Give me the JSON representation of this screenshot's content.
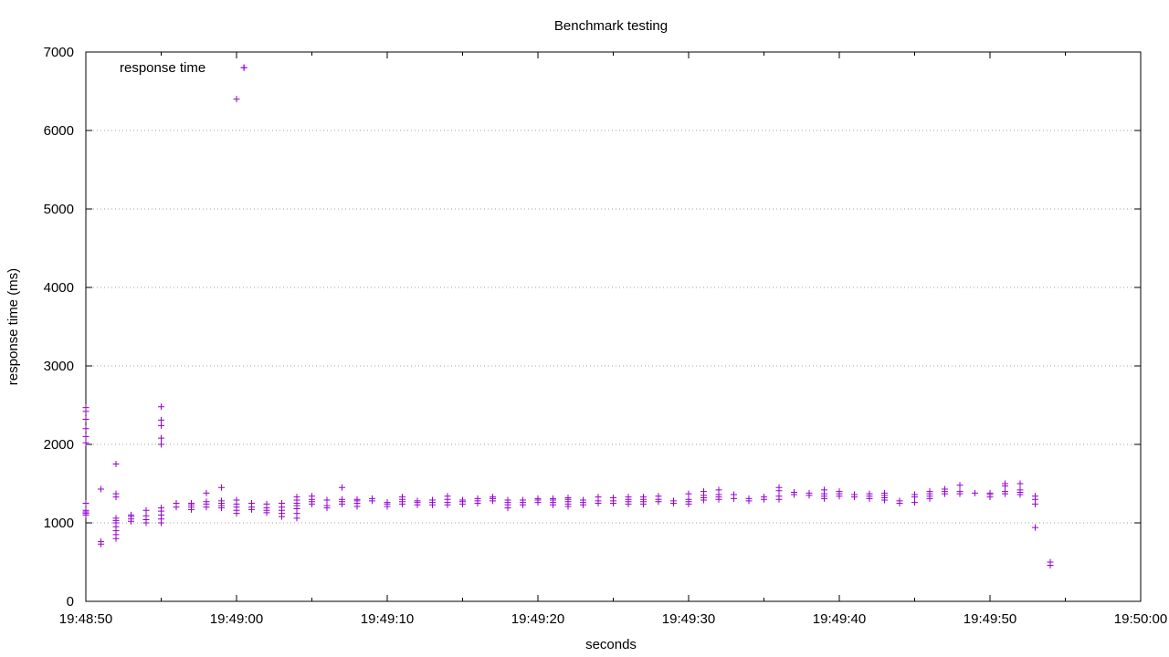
{
  "chart_data": {
    "type": "scatter",
    "title": "Benchmark testing",
    "xlabel": "seconds",
    "ylabel": "response time (ms)",
    "xlim": [
      "19:48:50",
      "19:50:00"
    ],
    "ylim": [
      0,
      7000
    ],
    "x_tick_labels": [
      "19:48:50",
      "19:49:00",
      "19:49:10",
      "19:49:20",
      "19:49:30",
      "19:49:40",
      "19:49:50",
      "19:50:00"
    ],
    "y_tick_labels": [
      "0",
      "1000",
      "2000",
      "3000",
      "4000",
      "5000",
      "6000",
      "7000"
    ],
    "y_grid": true,
    "legend": {
      "position": "top-left",
      "entries": [
        "response time"
      ]
    },
    "series": [
      {
        "name": "response time",
        "color": "#9400d3",
        "marker": "plus",
        "points": [
          [
            "19:48:50",
            1100
          ],
          [
            "19:48:50",
            1120
          ],
          [
            "19:48:50",
            1140
          ],
          [
            "19:48:50",
            1160
          ],
          [
            "19:48:50",
            1250
          ],
          [
            "19:48:50",
            2020
          ],
          [
            "19:48:50",
            2100
          ],
          [
            "19:48:50",
            2200
          ],
          [
            "19:48:50",
            2320
          ],
          [
            "19:48:50",
            2420
          ],
          [
            "19:48:50",
            2470
          ],
          [
            "19:48:51",
            730
          ],
          [
            "19:48:51",
            760
          ],
          [
            "19:48:51",
            1430
          ],
          [
            "19:48:52",
            800
          ],
          [
            "19:48:52",
            850
          ],
          [
            "19:48:52",
            900
          ],
          [
            "19:48:52",
            950
          ],
          [
            "19:48:52",
            1000
          ],
          [
            "19:48:52",
            1030
          ],
          [
            "19:48:52",
            1060
          ],
          [
            "19:48:52",
            1330
          ],
          [
            "19:48:52",
            1370
          ],
          [
            "19:48:52",
            1750
          ],
          [
            "19:48:53",
            1020
          ],
          [
            "19:48:53",
            1050
          ],
          [
            "19:48:53",
            1080
          ],
          [
            "19:48:53",
            1100
          ],
          [
            "19:48:54",
            1000
          ],
          [
            "19:48:54",
            1040
          ],
          [
            "19:48:54",
            1090
          ],
          [
            "19:48:54",
            1160
          ],
          [
            "19:48:55",
            1000
          ],
          [
            "19:48:55",
            1050
          ],
          [
            "19:48:55",
            1100
          ],
          [
            "19:48:55",
            1150
          ],
          [
            "19:48:55",
            1190
          ],
          [
            "19:48:55",
            2000
          ],
          [
            "19:48:55",
            2080
          ],
          [
            "19:48:55",
            2240
          ],
          [
            "19:48:55",
            2310
          ],
          [
            "19:48:55",
            2480
          ],
          [
            "19:48:56",
            1200
          ],
          [
            "19:48:56",
            1250
          ],
          [
            "19:48:57",
            1170
          ],
          [
            "19:48:57",
            1200
          ],
          [
            "19:48:57",
            1230
          ],
          [
            "19:48:57",
            1250
          ],
          [
            "19:48:58",
            1200
          ],
          [
            "19:48:58",
            1240
          ],
          [
            "19:48:58",
            1270
          ],
          [
            "19:48:58",
            1380
          ],
          [
            "19:48:59",
            1190
          ],
          [
            "19:48:59",
            1220
          ],
          [
            "19:48:59",
            1250
          ],
          [
            "19:48:59",
            1280
          ],
          [
            "19:48:59",
            1450
          ],
          [
            "19:49:00",
            1120
          ],
          [
            "19:49:00",
            1160
          ],
          [
            "19:49:00",
            1200
          ],
          [
            "19:49:00",
            1240
          ],
          [
            "19:49:00",
            1290
          ],
          [
            "19:49:00",
            6400
          ],
          [
            "19:49:00.5",
            6800
          ],
          [
            "19:49:01",
            1170
          ],
          [
            "19:49:01",
            1200
          ],
          [
            "19:49:01",
            1250
          ],
          [
            "19:49:02",
            1130
          ],
          [
            "19:49:02",
            1160
          ],
          [
            "19:49:02",
            1190
          ],
          [
            "19:49:02",
            1240
          ],
          [
            "19:49:03",
            1080
          ],
          [
            "19:49:03",
            1120
          ],
          [
            "19:49:03",
            1160
          ],
          [
            "19:49:03",
            1200
          ],
          [
            "19:49:03",
            1250
          ],
          [
            "19:49:04",
            1060
          ],
          [
            "19:49:04",
            1120
          ],
          [
            "19:49:04",
            1180
          ],
          [
            "19:49:04",
            1220
          ],
          [
            "19:49:04",
            1250
          ],
          [
            "19:49:04",
            1290
          ],
          [
            "19:49:04",
            1330
          ],
          [
            "19:49:05",
            1240
          ],
          [
            "19:49:05",
            1270
          ],
          [
            "19:49:05",
            1300
          ],
          [
            "19:49:05",
            1340
          ],
          [
            "19:49:06",
            1190
          ],
          [
            "19:49:06",
            1220
          ],
          [
            "19:49:06",
            1290
          ],
          [
            "19:49:07",
            1240
          ],
          [
            "19:49:07",
            1270
          ],
          [
            "19:49:07",
            1300
          ],
          [
            "19:49:07",
            1450
          ],
          [
            "19:49:08",
            1210
          ],
          [
            "19:49:08",
            1250
          ],
          [
            "19:49:08",
            1280
          ],
          [
            "19:49:08",
            1300
          ],
          [
            "19:49:09",
            1280
          ],
          [
            "19:49:09",
            1310
          ],
          [
            "19:49:10",
            1210
          ],
          [
            "19:49:10",
            1240
          ],
          [
            "19:49:10",
            1260
          ],
          [
            "19:49:11",
            1240
          ],
          [
            "19:49:11",
            1270
          ],
          [
            "19:49:11",
            1300
          ],
          [
            "19:49:11",
            1330
          ],
          [
            "19:49:12",
            1230
          ],
          [
            "19:49:12",
            1260
          ],
          [
            "19:49:12",
            1280
          ],
          [
            "19:49:13",
            1230
          ],
          [
            "19:49:13",
            1260
          ],
          [
            "19:49:13",
            1290
          ],
          [
            "19:49:14",
            1230
          ],
          [
            "19:49:14",
            1260
          ],
          [
            "19:49:14",
            1300
          ],
          [
            "19:49:14",
            1340
          ],
          [
            "19:49:15",
            1240
          ],
          [
            "19:49:15",
            1270
          ],
          [
            "19:49:15",
            1290
          ],
          [
            "19:49:16",
            1250
          ],
          [
            "19:49:16",
            1280
          ],
          [
            "19:49:16",
            1310
          ],
          [
            "19:49:17",
            1280
          ],
          [
            "19:49:17",
            1310
          ],
          [
            "19:49:17",
            1330
          ],
          [
            "19:49:18",
            1190
          ],
          [
            "19:49:18",
            1230
          ],
          [
            "19:49:18",
            1260
          ],
          [
            "19:49:18",
            1290
          ],
          [
            "19:49:19",
            1230
          ],
          [
            "19:49:19",
            1260
          ],
          [
            "19:49:19",
            1290
          ],
          [
            "19:49:20",
            1260
          ],
          [
            "19:49:20",
            1290
          ],
          [
            "19:49:20",
            1310
          ],
          [
            "19:49:21",
            1230
          ],
          [
            "19:49:21",
            1260
          ],
          [
            "19:49:21",
            1290
          ],
          [
            "19:49:21",
            1310
          ],
          [
            "19:49:22",
            1210
          ],
          [
            "19:49:22",
            1240
          ],
          [
            "19:49:22",
            1270
          ],
          [
            "19:49:22",
            1300
          ],
          [
            "19:49:22",
            1320
          ],
          [
            "19:49:23",
            1230
          ],
          [
            "19:49:23",
            1260
          ],
          [
            "19:49:23",
            1290
          ],
          [
            "19:49:24",
            1250
          ],
          [
            "19:49:24",
            1280
          ],
          [
            "19:49:24",
            1330
          ],
          [
            "19:49:25",
            1250
          ],
          [
            "19:49:25",
            1280
          ],
          [
            "19:49:25",
            1320
          ],
          [
            "19:49:26",
            1240
          ],
          [
            "19:49:26",
            1270
          ],
          [
            "19:49:26",
            1300
          ],
          [
            "19:49:26",
            1330
          ],
          [
            "19:49:27",
            1240
          ],
          [
            "19:49:27",
            1270
          ],
          [
            "19:49:27",
            1300
          ],
          [
            "19:49:27",
            1330
          ],
          [
            "19:49:28",
            1270
          ],
          [
            "19:49:28",
            1300
          ],
          [
            "19:49:28",
            1340
          ],
          [
            "19:49:29",
            1250
          ],
          [
            "19:49:29",
            1280
          ],
          [
            "19:49:30",
            1240
          ],
          [
            "19:49:30",
            1270
          ],
          [
            "19:49:30",
            1300
          ],
          [
            "19:49:30",
            1370
          ],
          [
            "19:49:31",
            1290
          ],
          [
            "19:49:31",
            1320
          ],
          [
            "19:49:31",
            1350
          ],
          [
            "19:49:31",
            1400
          ],
          [
            "19:49:32",
            1300
          ],
          [
            "19:49:32",
            1330
          ],
          [
            "19:49:32",
            1360
          ],
          [
            "19:49:32",
            1420
          ],
          [
            "19:49:33",
            1310
          ],
          [
            "19:49:33",
            1360
          ],
          [
            "19:49:34",
            1280
          ],
          [
            "19:49:34",
            1310
          ],
          [
            "19:49:35",
            1300
          ],
          [
            "19:49:35",
            1330
          ],
          [
            "19:49:36",
            1300
          ],
          [
            "19:49:36",
            1340
          ],
          [
            "19:49:36",
            1410
          ],
          [
            "19:49:36",
            1450
          ],
          [
            "19:49:37",
            1360
          ],
          [
            "19:49:37",
            1390
          ],
          [
            "19:49:38",
            1350
          ],
          [
            "19:49:38",
            1380
          ],
          [
            "19:49:39",
            1310
          ],
          [
            "19:49:39",
            1340
          ],
          [
            "19:49:39",
            1370
          ],
          [
            "19:49:39",
            1420
          ],
          [
            "19:49:40",
            1340
          ],
          [
            "19:49:40",
            1370
          ],
          [
            "19:49:40",
            1400
          ],
          [
            "19:49:41",
            1330
          ],
          [
            "19:49:41",
            1360
          ],
          [
            "19:49:42",
            1310
          ],
          [
            "19:49:42",
            1340
          ],
          [
            "19:49:42",
            1370
          ],
          [
            "19:49:43",
            1290
          ],
          [
            "19:49:43",
            1320
          ],
          [
            "19:49:43",
            1350
          ],
          [
            "19:49:43",
            1380
          ],
          [
            "19:49:44",
            1250
          ],
          [
            "19:49:44",
            1280
          ],
          [
            "19:49:45",
            1260
          ],
          [
            "19:49:45",
            1330
          ],
          [
            "19:49:45",
            1360
          ],
          [
            "19:49:46",
            1310
          ],
          [
            "19:49:46",
            1340
          ],
          [
            "19:49:46",
            1370
          ],
          [
            "19:49:46",
            1400
          ],
          [
            "19:49:47",
            1370
          ],
          [
            "19:49:47",
            1400
          ],
          [
            "19:49:47",
            1430
          ],
          [
            "19:49:48",
            1370
          ],
          [
            "19:49:48",
            1400
          ],
          [
            "19:49:48",
            1480
          ],
          [
            "19:49:49",
            1380
          ],
          [
            "19:49:50",
            1330
          ],
          [
            "19:49:50",
            1360
          ],
          [
            "19:49:50",
            1380
          ],
          [
            "19:49:51",
            1370
          ],
          [
            "19:49:51",
            1400
          ],
          [
            "19:49:51",
            1470
          ],
          [
            "19:49:51",
            1500
          ],
          [
            "19:49:52",
            1360
          ],
          [
            "19:49:52",
            1390
          ],
          [
            "19:49:52",
            1420
          ],
          [
            "19:49:52",
            1500
          ],
          [
            "19:49:53",
            940
          ],
          [
            "19:49:53",
            1240
          ],
          [
            "19:49:53",
            1300
          ],
          [
            "19:49:53",
            1340
          ],
          [
            "19:49:54",
            460
          ],
          [
            "19:49:54",
            500
          ]
        ]
      }
    ]
  }
}
